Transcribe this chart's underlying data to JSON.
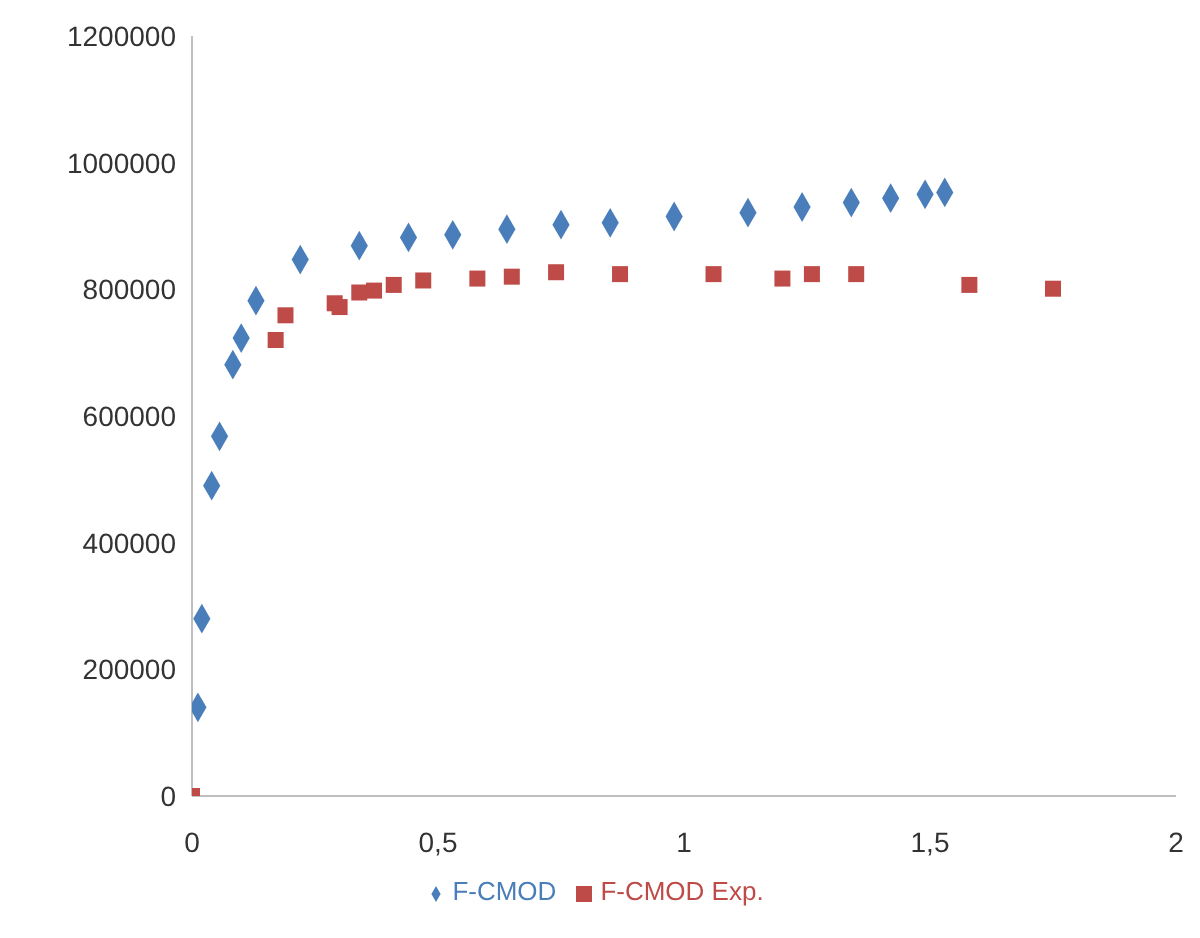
{
  "chart_data": {
    "type": "scatter",
    "xlim": [
      0,
      2
    ],
    "xticks": [
      0,
      {
        "value": 0.5,
        "label": "0,5"
      },
      1,
      {
        "value": 1.5,
        "label": "1,5"
      },
      2
    ],
    "ylim": [
      0,
      1200000
    ],
    "yticks": [
      0,
      200000,
      400000,
      600000,
      800000,
      1000000,
      1200000
    ],
    "grid": false,
    "legend": "bottom",
    "series": [
      {
        "name": "F-CMOD",
        "color": "#4a7ebb",
        "marker": "diamond",
        "x": [
          0.012,
          0.02,
          0.04,
          0.056,
          0.083,
          0.1,
          0.13,
          0.22,
          0.34,
          0.44,
          0.53,
          0.64,
          0.75,
          0.85,
          0.98,
          1.13,
          1.24,
          1.34,
          1.42,
          1.49,
          1.53
        ],
        "values": [
          140000,
          280000,
          490000,
          568000,
          681000,
          723000,
          782000,
          847000,
          869000,
          882000,
          886000,
          895000,
          902000,
          905000,
          915000,
          921000,
          930000,
          937000,
          944000,
          950000,
          953000
        ]
      },
      {
        "name": "F-CMOD Exp.",
        "color": "#be4b48",
        "marker": "square",
        "x": [
          0,
          0.17,
          0.19,
          0.29,
          0.3,
          0.34,
          0.37,
          0.41,
          0.47,
          0.58,
          0.65,
          0.74,
          0.87,
          1.06,
          1.2,
          1.26,
          1.35,
          1.58,
          1.75
        ],
        "values": [
          0,
          720000,
          759000,
          778000,
          772000,
          795000,
          798000,
          807000,
          814000,
          817000,
          820000,
          827000,
          824000,
          824000,
          817000,
          824000,
          824000,
          807000,
          801000
        ]
      }
    ]
  }
}
